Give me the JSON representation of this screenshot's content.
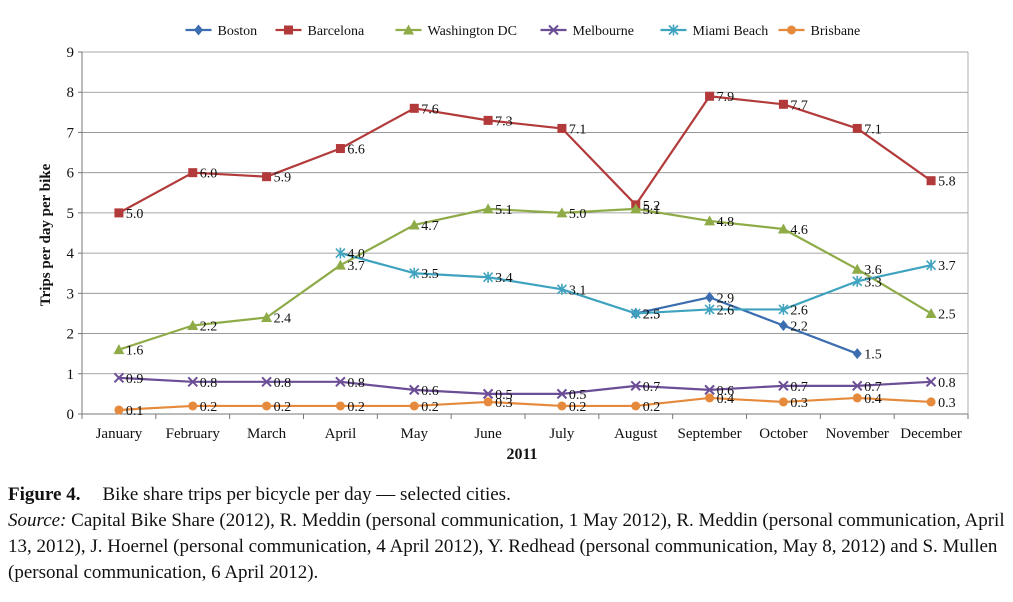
{
  "chart_data": {
    "type": "line",
    "title": "",
    "xlabel": "2011",
    "ylabel": "Trips per day per bike",
    "ylim": [
      0,
      9
    ],
    "yticks": [
      "0",
      "1",
      "2",
      "3",
      "4",
      "5",
      "6",
      "7",
      "8",
      "9"
    ],
    "categories": [
      "January",
      "February",
      "March",
      "April",
      "May",
      "June",
      "July",
      "August",
      "September",
      "October",
      "November",
      "December"
    ],
    "grid": true,
    "legend_position": "top",
    "series": [
      {
        "name": "Boston",
        "color": "#3B6DB0",
        "marker": "diamond",
        "values": [
          null,
          null,
          null,
          null,
          null,
          null,
          null,
          2.5,
          2.9,
          2.2,
          1.5,
          null
        ],
        "labels": [
          null,
          null,
          null,
          null,
          null,
          null,
          null,
          "2.5",
          "2.9",
          "2.2",
          "1.5",
          null
        ]
      },
      {
        "name": "Barcelona",
        "color": "#B23A3A",
        "marker": "square",
        "values": [
          5.0,
          6.0,
          5.9,
          6.6,
          7.6,
          7.3,
          7.1,
          5.2,
          7.9,
          7.7,
          7.1,
          5.8
        ],
        "labels": [
          "5.0",
          "6.0",
          "5.9",
          "6.6",
          "7.6",
          "7.3",
          "7.1",
          "5.2",
          "7.9",
          "7.7",
          "7.1",
          "5.8"
        ]
      },
      {
        "name": "Washington DC",
        "color": "#8EAB48",
        "marker": "triangle",
        "values": [
          1.6,
          2.2,
          2.4,
          3.7,
          4.7,
          5.1,
          5.0,
          5.1,
          4.8,
          4.6,
          3.6,
          2.5
        ],
        "labels": [
          "1.6",
          "2.2",
          "2.4",
          "3.7",
          "4.7",
          "5.1",
          "5.0",
          "5.1",
          "4.8",
          "4.6",
          "3.6",
          "2.5"
        ]
      },
      {
        "name": "Melbourne",
        "color": "#6B4E96",
        "marker": "x",
        "values": [
          0.9,
          0.8,
          0.8,
          0.8,
          0.6,
          0.5,
          0.5,
          0.7,
          0.6,
          0.7,
          0.7,
          0.8
        ],
        "labels": [
          "0.9",
          "0.8",
          "0.8",
          "0.8",
          "0.6",
          "0.5",
          "0.5",
          "0.7",
          "0.6",
          "0.7",
          "0.7",
          "0.8"
        ]
      },
      {
        "name": "Miami Beach",
        "color": "#3FA3C0",
        "marker": "asterisk",
        "values": [
          null,
          null,
          null,
          4.0,
          3.5,
          3.4,
          3.1,
          2.5,
          2.6,
          2.6,
          3.3,
          3.7
        ],
        "labels": [
          null,
          null,
          null,
          "4.0",
          "3.5",
          "3.4",
          "3.1",
          "2.5",
          "2.6",
          "2.6",
          "3.3",
          "3.7"
        ]
      },
      {
        "name": "Brisbane",
        "color": "#E58A3C",
        "marker": "circle",
        "values": [
          0.1,
          0.2,
          0.2,
          0.2,
          0.2,
          0.3,
          0.2,
          0.2,
          0.4,
          0.3,
          0.4,
          0.3
        ],
        "labels": [
          "0.1",
          "0.2",
          "0.2",
          "0.2",
          "0.2",
          "0.3",
          "0.2",
          "0.2",
          "0.4",
          "0.3",
          "0.4",
          "0.3"
        ]
      }
    ]
  },
  "caption": {
    "figure_label": "Figure 4.",
    "figure_title": "Bike share trips per bicycle per day — selected cities.",
    "source_label": "Source:",
    "source_text": " Capital Bike Share (2012), R. Meddin (personal communication, 1 May 2012), R. Meddin (personal communication, April 13, 2012), J. Hoernel (personal communication, 4 April 2012), Y. Redhead (personal communication, May 8, 2012) and S. Mullen (personal communication, 6 April 2012)."
  }
}
